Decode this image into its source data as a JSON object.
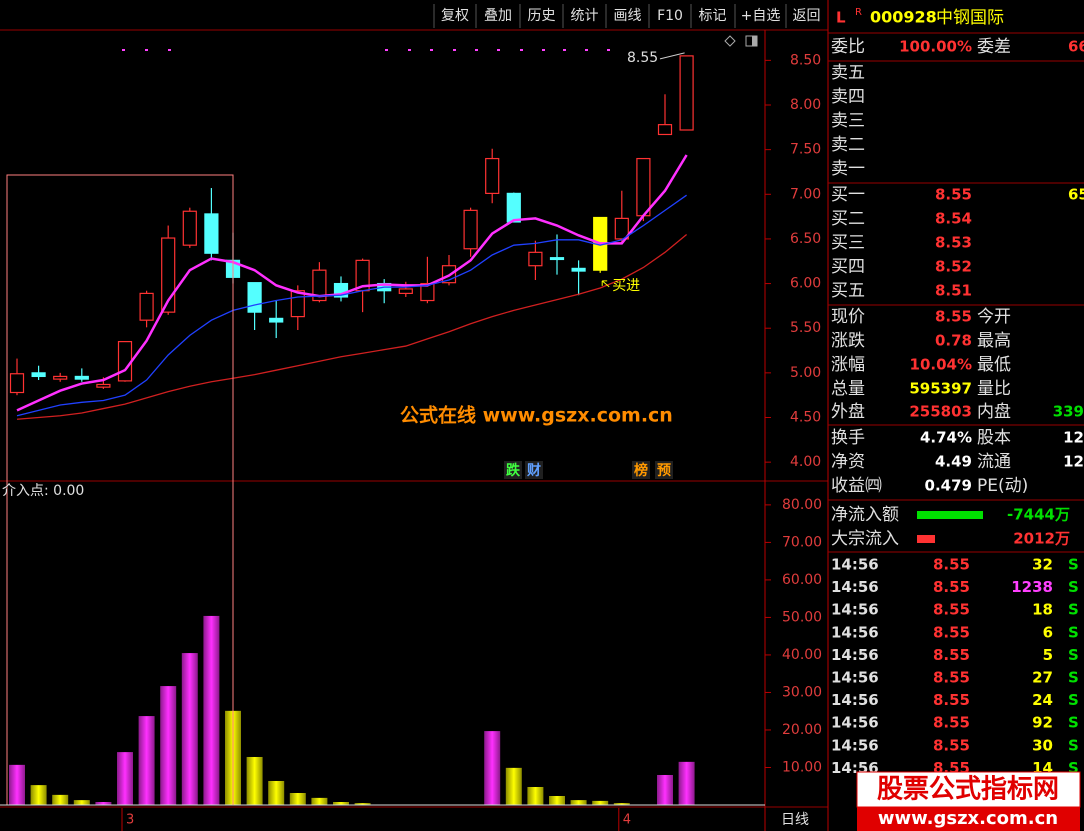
{
  "toolbar": {
    "buttons": [
      "复权",
      "叠加",
      "历史",
      "统计",
      "画线",
      "F10",
      "标记",
      "+自选",
      "返回"
    ]
  },
  "quote": {
    "flag": "L",
    "flag_sup": "R",
    "code": "000928",
    "name": "中钢国际"
  },
  "order_book": {
    "ratio": {
      "label": "委比",
      "value": "100.00%",
      "label2": "委差",
      "value2": "66"
    },
    "asks": [
      "卖五",
      "卖四",
      "卖三",
      "卖二",
      "卖一"
    ],
    "bids": [
      {
        "label": "买一",
        "price": "8.55",
        "volume": "65"
      },
      {
        "label": "买二",
        "price": "8.54"
      },
      {
        "label": "买三",
        "price": "8.53"
      },
      {
        "label": "买四",
        "price": "8.52"
      },
      {
        "label": "买五",
        "price": "8.51"
      }
    ]
  },
  "stats": [
    {
      "label": "现价",
      "value": "8.55",
      "color": "#ff3232",
      "label2": "今开"
    },
    {
      "label": "涨跌",
      "value": "0.78",
      "color": "#ff3232",
      "label2": "最高"
    },
    {
      "label": "涨幅",
      "value": "10.04%",
      "color": "#ff3232",
      "label2": "最低"
    },
    {
      "label": "总量",
      "value": "595397",
      "color": "#ffff00",
      "label2": "量比"
    },
    {
      "label": "外盘",
      "value": "255803",
      "color": "#ff3232",
      "label2": "内盘",
      "value2": "339",
      "color2": "#00e000"
    },
    {
      "label": "换手",
      "value": "4.74%",
      "color": "#ffffff",
      "label2": "股本",
      "value2": "12",
      "color2": "#ffffff"
    },
    {
      "label": "净资",
      "value": "4.49",
      "color": "#ffffff",
      "label2": "流通",
      "value2": "12",
      "color2": "#ffffff"
    },
    {
      "label": "收益㈣",
      "value": "0.479",
      "color": "#ffffff",
      "label2": "PE(动)"
    }
  ],
  "flows": [
    {
      "label": "净流入额",
      "value": "-7444万",
      "color": "#00e000"
    },
    {
      "label": "大宗流入",
      "value": "2012万",
      "color": "#ff3232"
    }
  ],
  "ticks": [
    {
      "time": "14:56",
      "price": "8.55",
      "volume": "32",
      "side": "S",
      "color": "#ffff00"
    },
    {
      "time": "14:56",
      "price": "8.55",
      "volume": "1238",
      "side": "S",
      "color": "#ff40ff"
    },
    {
      "time": "14:56",
      "price": "8.55",
      "volume": "18",
      "side": "S",
      "color": "#ffff00"
    },
    {
      "time": "14:56",
      "price": "8.55",
      "volume": "6",
      "side": "S",
      "color": "#ffff00"
    },
    {
      "time": "14:56",
      "price": "8.55",
      "volume": "5",
      "side": "S",
      "color": "#ffff00"
    },
    {
      "time": "14:56",
      "price": "8.55",
      "volume": "27",
      "side": "S",
      "color": "#ffff00"
    },
    {
      "time": "14:56",
      "price": "8.55",
      "volume": "24",
      "side": "S",
      "color": "#ffff00"
    },
    {
      "time": "14:56",
      "price": "8.55",
      "volume": "92",
      "side": "S",
      "color": "#ffff00"
    },
    {
      "time": "14:56",
      "price": "8.55",
      "volume": "30",
      "side": "S",
      "color": "#ffff00"
    },
    {
      "time": "14:56",
      "price": "8.55",
      "volume": "14",
      "side": "S",
      "color": "#ffff00"
    }
  ],
  "period": "日线",
  "watermark": {
    "title": "股票公式指标网",
    "url": "www.gszx.com.cn"
  },
  "chart_data": [
    {
      "type": "candlestick",
      "categories": [
        null,
        null,
        null,
        null,
        null,
        "3",
        null,
        null,
        null,
        null,
        null,
        null,
        null,
        null,
        null,
        null,
        null,
        null,
        null,
        null,
        null,
        null,
        null,
        null,
        null,
        null,
        null,
        null,
        "4",
        null,
        null,
        null
      ],
      "open": [
        4.78,
        5.0,
        4.93,
        4.96,
        4.84,
        4.91,
        5.59,
        5.68,
        6.43,
        6.78,
        6.26,
        6.01,
        5.61,
        5.63,
        5.81,
        6.0,
        5.92,
        6.0,
        5.89,
        5.81,
        6.01,
        6.39,
        7.01,
        7.01,
        6.2,
        6.29,
        6.17,
        6.15,
        6.5,
        6.76,
        7.67,
        7.72
      ],
      "high": [
        5.16,
        5.08,
        5.0,
        5.05,
        4.95,
        5.35,
        5.92,
        6.65,
        6.85,
        7.07,
        6.57,
        6.01,
        5.81,
        5.98,
        6.24,
        6.08,
        6.28,
        6.05,
        6.02,
        6.3,
        6.32,
        6.85,
        7.51,
        7.02,
        6.48,
        6.55,
        6.26,
        6.74,
        7.04,
        7.4,
        8.12,
        8.55
      ],
      "low": [
        4.75,
        4.92,
        4.9,
        4.9,
        4.82,
        4.9,
        5.51,
        5.65,
        6.4,
        6.26,
        6.0,
        5.48,
        5.39,
        5.48,
        5.79,
        5.8,
        5.68,
        5.78,
        5.85,
        5.78,
        5.98,
        6.3,
        6.9,
        6.69,
        6.04,
        6.1,
        5.87,
        6.12,
        6.45,
        6.7,
        7.67,
        7.72
      ],
      "close": [
        4.99,
        4.96,
        4.96,
        4.93,
        4.87,
        5.35,
        5.89,
        6.51,
        6.81,
        6.34,
        6.07,
        5.68,
        5.57,
        5.92,
        6.15,
        5.85,
        6.26,
        5.92,
        5.94,
        6.0,
        6.2,
        6.82,
        7.4,
        6.69,
        6.35,
        6.27,
        6.14,
        6.74,
        6.73,
        7.4,
        7.78,
        8.55
      ],
      "up_color": "#ff3232",
      "down_color": "#54ffff",
      "signal_color": "#ffff00",
      "signal_candles": [
        27
      ],
      "lines": [
        {
          "color": "#ff30ff",
          "values": [
            4.58,
            4.69,
            4.8,
            4.88,
            4.92,
            5.03,
            5.36,
            5.81,
            6.15,
            6.28,
            6.24,
            6.15,
            5.98,
            5.9,
            5.86,
            5.88,
            5.97,
            5.99,
            5.98,
            5.98,
            6.09,
            6.26,
            6.56,
            6.71,
            6.73,
            6.65,
            6.54,
            6.45,
            6.45,
            6.76,
            7.04,
            7.44
          ]
        },
        {
          "color": "#2040ff",
          "values": [
            4.52,
            4.58,
            4.64,
            4.67,
            4.69,
            4.75,
            4.92,
            5.2,
            5.42,
            5.59,
            5.7,
            5.76,
            5.81,
            5.85,
            5.86,
            5.87,
            5.92,
            5.96,
            5.96,
            5.98,
            6.04,
            6.15,
            6.32,
            6.43,
            6.45,
            6.49,
            6.49,
            6.43,
            6.49,
            6.65,
            6.82,
            6.99
          ]
        },
        {
          "color": "#d02020",
          "values": [
            4.48,
            4.5,
            4.52,
            4.55,
            4.6,
            4.65,
            4.72,
            4.79,
            4.85,
            4.9,
            4.94,
            4.98,
            5.03,
            5.08,
            5.13,
            5.18,
            5.22,
            5.26,
            5.3,
            5.38,
            5.46,
            5.55,
            5.63,
            5.7,
            5.76,
            5.82,
            5.88,
            5.95,
            6.05,
            6.18,
            6.35,
            6.55
          ]
        }
      ],
      "ylim": [
        3.8,
        8.84
      ],
      "yticks": [
        {
          "value": 8.5,
          "label": "8.50"
        },
        {
          "value": 8,
          "label": "8.00"
        },
        {
          "value": 7.5,
          "label": "7.50"
        },
        {
          "value": 7,
          "label": "7.00"
        },
        {
          "value": 6.5,
          "label": "6.50"
        },
        {
          "value": 6,
          "label": "6.00"
        },
        {
          "value": 5.5,
          "label": "5.50"
        },
        {
          "value": 5,
          "label": "5.00"
        },
        {
          "value": 4.5,
          "label": "4.50"
        },
        {
          "value": 4,
          "label": "4.00"
        }
      ],
      "high_marker": {
        "value": 8.55,
        "label": "8.55"
      },
      "signal_label": "买进",
      "watermark": "公式在线  www.gszx.com.cn",
      "badges": [
        {
          "text": "跌",
          "color": "#40ff40"
        },
        {
          "text": "财",
          "color": "#60a0ff"
        },
        {
          "text": "榜",
          "color": "#ff9900"
        },
        {
          "text": "预",
          "color": "#ff9900"
        }
      ]
    },
    {
      "type": "bar",
      "title": "介入点: 0.00",
      "values": [
        10.7,
        5.3,
        2.7,
        1.3,
        0.8,
        14.1,
        23.7,
        31.7,
        40.5,
        50.4,
        25.1,
        12.8,
        6.4,
        3.2,
        1.9,
        0.8,
        0.5,
        0,
        0,
        0,
        0,
        0,
        19.7,
        9.9,
        4.8,
        2.4,
        1.3,
        1.1,
        0.5,
        0,
        8.0,
        11.5
      ],
      "colors": [
        "#ff30ff",
        "#ffff00",
        "#ffff00",
        "#ffff00",
        "#ff30ff",
        "#ff30ff",
        "#ff30ff",
        "#ff30ff",
        "#ff30ff",
        "#ff30ff",
        "#ffff00",
        "#ffff00",
        "#ffff00",
        "#ffff00",
        "#ffff00",
        "#ffff00",
        "#ffff00",
        "#ffff00",
        "#ffff00",
        "#ffff00",
        "#ffff00",
        "#ffff00",
        "#ff30ff",
        "#ffff00",
        "#ffff00",
        "#ffff00",
        "#ffff00",
        "#ffff00",
        "#ffff00",
        "#ffff00",
        "#ff30ff",
        "#ff30ff"
      ],
      "ylim": [
        0,
        86.1
      ],
      "yticks": [
        {
          "value": 80,
          "label": "80.00"
        },
        {
          "value": 70,
          "label": "70.00"
        },
        {
          "value": 60,
          "label": "60.00"
        },
        {
          "value": 50,
          "label": "50.00"
        },
        {
          "value": 40,
          "label": "40.00"
        },
        {
          "value": 30,
          "label": "30.00"
        },
        {
          "value": 20,
          "label": "20.00"
        },
        {
          "value": 10,
          "label": "10.00"
        }
      ]
    }
  ]
}
